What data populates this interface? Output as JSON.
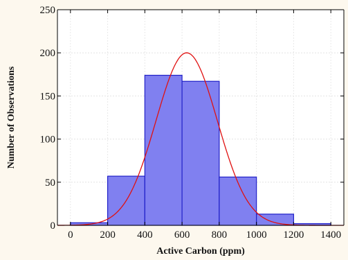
{
  "chart_data": {
    "type": "bar",
    "subtype": "histogram",
    "xlabel": "Active Carbon (ppm)",
    "ylabel": "Number of Observations",
    "bins": [
      {
        "start": 0,
        "end": 200,
        "count": 3
      },
      {
        "start": 200,
        "end": 400,
        "count": 57
      },
      {
        "start": 400,
        "end": 600,
        "count": 174
      },
      {
        "start": 600,
        "end": 800,
        "count": 167
      },
      {
        "start": 800,
        "end": 1000,
        "count": 56
      },
      {
        "start": 1000,
        "end": 1200,
        "count": 13
      },
      {
        "start": 1200,
        "end": 1400,
        "count": 2
      }
    ],
    "fit_curve": {
      "type": "normal",
      "mean": 625,
      "sd": 165,
      "peak": 200
    },
    "xlim": [
      -70,
      1470
    ],
    "ylim": [
      0,
      250
    ],
    "x_ticks": [
      0,
      200,
      400,
      600,
      800,
      1000,
      1200,
      1400
    ],
    "y_ticks": [
      0,
      50,
      100,
      150,
      200,
      250
    ],
    "grid": true,
    "colors": {
      "bar_fill": "#8080f0",
      "bar_stroke": "#2020c8",
      "curve": "#e01010",
      "background": "#fdf8ee",
      "plot_background": "#ffffff"
    }
  }
}
